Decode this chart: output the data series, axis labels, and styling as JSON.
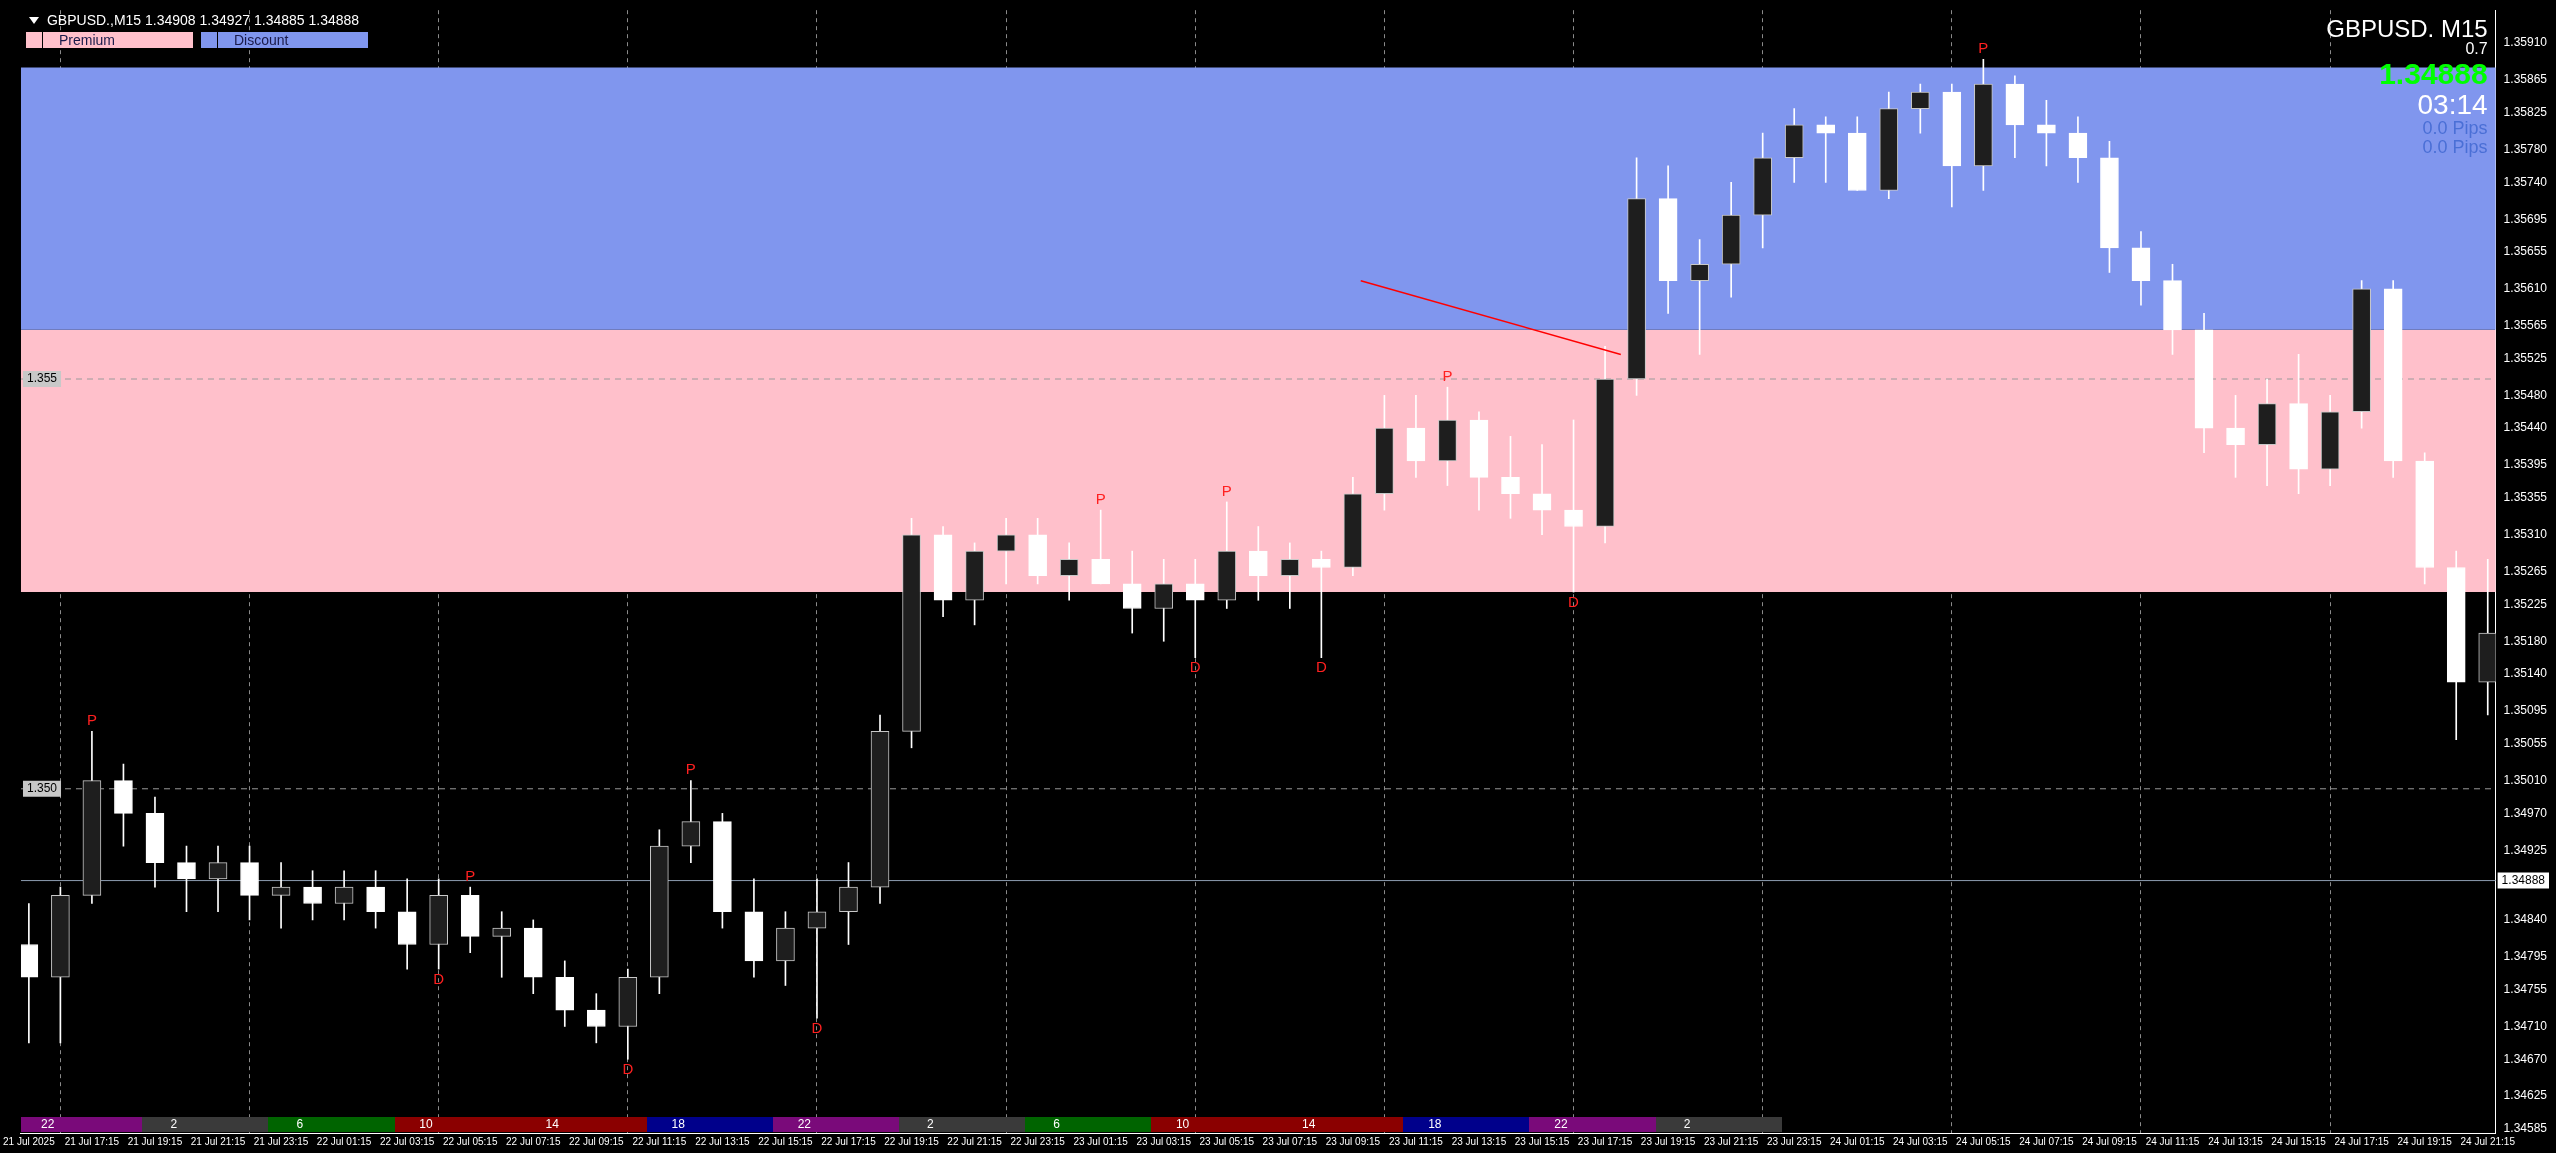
{
  "chart_data": {
    "type": "candlestick",
    "title": "GBPUSD.,M15 1.34908 1.34927 1.34885 1.34888",
    "x": [
      "2025-07-21T15:15",
      "2025-07-21T16:15",
      "2025-07-21T17:15",
      "2025-07-21T18:15",
      "2025-07-21T19:15",
      "2025-07-21T20:15",
      "2025-07-21T21:15",
      "2025-07-21T22:15",
      "2025-07-21T23:15",
      "2025-07-22T00:15",
      "2025-07-22T01:15",
      "2025-07-22T02:15",
      "2025-07-22T03:15",
      "2025-07-22T04:15",
      "2025-07-22T05:15",
      "2025-07-22T06:15",
      "2025-07-22T07:15",
      "2025-07-22T08:15",
      "2025-07-22T09:15",
      "2025-07-22T10:15",
      "2025-07-22T11:15",
      "2025-07-22T12:15",
      "2025-07-22T13:15",
      "2025-07-22T14:15",
      "2025-07-22T15:15",
      "2025-07-22T16:15",
      "2025-07-22T17:15",
      "2025-07-22T18:15",
      "2025-07-22T19:15",
      "2025-07-22T20:15",
      "2025-07-22T21:15",
      "2025-07-22T22:15",
      "2025-07-22T23:15",
      "2025-07-23T00:15",
      "2025-07-23T01:15",
      "2025-07-23T02:15",
      "2025-07-23T03:15",
      "2025-07-23T04:15",
      "2025-07-23T05:15",
      "2025-07-23T06:15",
      "2025-07-23T07:15",
      "2025-07-23T08:15",
      "2025-07-23T09:15",
      "2025-07-23T10:15",
      "2025-07-23T11:15",
      "2025-07-23T12:15",
      "2025-07-23T13:15",
      "2025-07-23T14:15",
      "2025-07-23T15:15",
      "2025-07-23T16:15",
      "2025-07-23T17:15",
      "2025-07-23T18:15",
      "2025-07-23T19:15",
      "2025-07-23T20:15",
      "2025-07-23T21:15",
      "2025-07-23T22:15",
      "2025-07-23T23:15",
      "2025-07-24T00:15",
      "2025-07-24T01:15",
      "2025-07-24T02:15",
      "2025-07-24T03:15",
      "2025-07-24T04:15",
      "2025-07-24T05:15",
      "2025-07-24T06:15",
      "2025-07-24T07:15",
      "2025-07-24T08:15",
      "2025-07-24T09:15",
      "2025-07-24T10:15",
      "2025-07-24T11:15",
      "2025-07-24T12:15",
      "2025-07-24T13:15",
      "2025-07-24T14:15",
      "2025-07-24T15:15",
      "2025-07-24T16:15",
      "2025-07-24T17:15",
      "2025-07-24T18:15",
      "2025-07-24T19:15",
      "2025-07-24T20:15",
      "2025-07-24T21:15"
    ],
    "ohlc": [
      [
        1.3481,
        1.3486,
        1.3469,
        1.3477
      ],
      [
        1.3477,
        1.3488,
        1.3469,
        1.3487
      ],
      [
        1.3487,
        1.3507,
        1.3486,
        1.3501
      ],
      [
        1.3501,
        1.3503,
        1.3493,
        1.3497
      ],
      [
        1.3497,
        1.3499,
        1.3488,
        1.3491
      ],
      [
        1.3491,
        1.3493,
        1.3485,
        1.3489
      ],
      [
        1.3489,
        1.3493,
        1.3485,
        1.3491
      ],
      [
        1.3491,
        1.3493,
        1.3484,
        1.3487
      ],
      [
        1.3487,
        1.3491,
        1.3483,
        1.3488
      ],
      [
        1.3488,
        1.349,
        1.3484,
        1.3486
      ],
      [
        1.3486,
        1.349,
        1.3484,
        1.3488
      ],
      [
        1.3488,
        1.349,
        1.3483,
        1.3485
      ],
      [
        1.3485,
        1.3489,
        1.3478,
        1.3481
      ],
      [
        1.3481,
        1.3489,
        1.3478,
        1.3487
      ],
      [
        1.3487,
        1.3488,
        1.348,
        1.3482
      ],
      [
        1.3482,
        1.3485,
        1.3477,
        1.3483
      ],
      [
        1.3483,
        1.3484,
        1.3475,
        1.3477
      ],
      [
        1.3477,
        1.3479,
        1.3471,
        1.3473
      ],
      [
        1.3473,
        1.3475,
        1.3469,
        1.3471
      ],
      [
        1.3471,
        1.3478,
        1.3467,
        1.3477
      ],
      [
        1.3477,
        1.3495,
        1.3475,
        1.3493
      ],
      [
        1.3493,
        1.3501,
        1.3491,
        1.3496
      ],
      [
        1.3496,
        1.3497,
        1.3483,
        1.3485
      ],
      [
        1.3485,
        1.3489,
        1.3477,
        1.3479
      ],
      [
        1.3479,
        1.3485,
        1.3476,
        1.3483
      ],
      [
        1.3483,
        1.3489,
        1.3472,
        1.3485
      ],
      [
        1.3485,
        1.3491,
        1.3481,
        1.3488
      ],
      [
        1.3488,
        1.3509,
        1.3486,
        1.3507
      ],
      [
        1.3507,
        1.3533,
        1.3505,
        1.3531
      ],
      [
        1.3531,
        1.3532,
        1.3521,
        1.3523
      ],
      [
        1.3523,
        1.353,
        1.352,
        1.3529
      ],
      [
        1.3529,
        1.3533,
        1.3525,
        1.3531
      ],
      [
        1.3531,
        1.3533,
        1.3525,
        1.3526
      ],
      [
        1.3526,
        1.353,
        1.3523,
        1.3528
      ],
      [
        1.3528,
        1.3534,
        1.3525,
        1.3525
      ],
      [
        1.3525,
        1.3529,
        1.3519,
        1.3522
      ],
      [
        1.3522,
        1.3528,
        1.3518,
        1.3525
      ],
      [
        1.3525,
        1.3528,
        1.3516,
        1.3523
      ],
      [
        1.3523,
        1.3535,
        1.3522,
        1.3529
      ],
      [
        1.3529,
        1.3532,
        1.3523,
        1.3526
      ],
      [
        1.3526,
        1.353,
        1.3522,
        1.3528
      ],
      [
        1.3528,
        1.3529,
        1.3516,
        1.3527
      ],
      [
        1.3527,
        1.3538,
        1.3526,
        1.3536
      ],
      [
        1.3536,
        1.3548,
        1.3534,
        1.3544
      ],
      [
        1.3544,
        1.3548,
        1.3538,
        1.354
      ],
      [
        1.354,
        1.3549,
        1.3537,
        1.3545
      ],
      [
        1.3545,
        1.3546,
        1.3534,
        1.3538
      ],
      [
        1.3538,
        1.3543,
        1.3533,
        1.3536
      ],
      [
        1.3536,
        1.3542,
        1.3531,
        1.3534
      ],
      [
        1.3534,
        1.3545,
        1.3524,
        1.3532
      ],
      [
        1.3532,
        1.3554,
        1.353,
        1.355
      ],
      [
        1.355,
        1.3577,
        1.3548,
        1.3572
      ],
      [
        1.3572,
        1.3576,
        1.3558,
        1.3562
      ],
      [
        1.3562,
        1.3567,
        1.3553,
        1.3564
      ],
      [
        1.3564,
        1.3574,
        1.356,
        1.357
      ],
      [
        1.357,
        1.358,
        1.3566,
        1.3577
      ],
      [
        1.3577,
        1.3583,
        1.3574,
        1.3581
      ],
      [
        1.3581,
        1.3582,
        1.3574,
        1.358
      ],
      [
        1.358,
        1.3582,
        1.3573,
        1.3573
      ],
      [
        1.3573,
        1.3585,
        1.3572,
        1.3583
      ],
      [
        1.3583,
        1.3586,
        1.358,
        1.3585
      ],
      [
        1.3585,
        1.3586,
        1.3571,
        1.3576
      ],
      [
        1.3576,
        1.3589,
        1.3573,
        1.3586
      ],
      [
        1.3586,
        1.3587,
        1.3577,
        1.3581
      ],
      [
        1.3581,
        1.3584,
        1.3576,
        1.358
      ],
      [
        1.358,
        1.3582,
        1.3574,
        1.3577
      ],
      [
        1.3577,
        1.3579,
        1.3563,
        1.3566
      ],
      [
        1.3566,
        1.3568,
        1.3559,
        1.3562
      ],
      [
        1.3562,
        1.3564,
        1.3553,
        1.3556
      ],
      [
        1.3556,
        1.3558,
        1.3541,
        1.3544
      ],
      [
        1.3544,
        1.3548,
        1.3538,
        1.3542
      ],
      [
        1.3542,
        1.355,
        1.3537,
        1.3547
      ],
      [
        1.3547,
        1.3553,
        1.3536,
        1.3539
      ],
      [
        1.3539,
        1.3548,
        1.3537,
        1.3546
      ],
      [
        1.3546,
        1.3562,
        1.3544,
        1.3561
      ],
      [
        1.3561,
        1.3562,
        1.3538,
        1.354
      ],
      [
        1.354,
        1.3541,
        1.3525,
        1.3527
      ],
      [
        1.3527,
        1.3529,
        1.3506,
        1.3513
      ],
      [
        1.3513,
        1.3528,
        1.3509,
        1.3519
      ]
    ],
    "series": [
      {
        "type": "line",
        "color": "#ff0000",
        "x": [
          "2025-07-23T09:30",
          "2025-07-23T17:45"
        ],
        "values": [
          1.3562,
          1.3553
        ]
      }
    ],
    "xlim": [
      "2025-07-21T15:00",
      "2025-07-24T21:30"
    ],
    "xticks": [
      {
        "value": "2025-07-21T15:15",
        "label": "21 Jul 2025"
      },
      {
        "value": "2025-07-21T17:15",
        "label": "21 Jul 17:15"
      },
      {
        "value": "2025-07-21T19:15",
        "label": "21 Jul 19:15"
      },
      {
        "value": "2025-07-21T21:15",
        "label": "21 Jul 21:15"
      },
      {
        "value": "2025-07-21T23:15",
        "label": "21 Jul 23:15"
      },
      {
        "value": "2025-07-22T01:15",
        "label": "22 Jul 01:15"
      },
      {
        "value": "2025-07-22T03:15",
        "label": "22 Jul 03:15"
      },
      {
        "value": "2025-07-22T05:15",
        "label": "22 Jul 05:15"
      },
      {
        "value": "2025-07-22T07:15",
        "label": "22 Jul 07:15"
      },
      {
        "value": "2025-07-22T09:15",
        "label": "22 Jul 09:15"
      },
      {
        "value": "2025-07-22T11:15",
        "label": "22 Jul 11:15"
      },
      {
        "value": "2025-07-22T13:15",
        "label": "22 Jul 13:15"
      },
      {
        "value": "2025-07-22T15:15",
        "label": "22 Jul 15:15"
      },
      {
        "value": "2025-07-22T17:15",
        "label": "22 Jul 17:15"
      },
      {
        "value": "2025-07-22T19:15",
        "label": "22 Jul 19:15"
      },
      {
        "value": "2025-07-22T21:15",
        "label": "22 Jul 21:15"
      },
      {
        "value": "2025-07-22T23:15",
        "label": "22 Jul 23:15"
      },
      {
        "value": "2025-07-23T01:15",
        "label": "23 Jul 01:15"
      },
      {
        "value": "2025-07-23T03:15",
        "label": "23 Jul 03:15"
      },
      {
        "value": "2025-07-23T05:15",
        "label": "23 Jul 05:15"
      },
      {
        "value": "2025-07-23T07:15",
        "label": "23 Jul 07:15"
      },
      {
        "value": "2025-07-23T09:15",
        "label": "23 Jul 09:15"
      },
      {
        "value": "2025-07-23T11:15",
        "label": "23 Jul 11:15"
      },
      {
        "value": "2025-07-23T13:15",
        "label": "23 Jul 13:15"
      },
      {
        "value": "2025-07-23T15:15",
        "label": "23 Jul 15:15"
      },
      {
        "value": "2025-07-23T17:15",
        "label": "23 Jul 17:15"
      },
      {
        "value": "2025-07-23T19:15",
        "label": "23 Jul 19:15"
      },
      {
        "value": "2025-07-23T21:15",
        "label": "23 Jul 21:15"
      },
      {
        "value": "2025-07-23T23:15",
        "label": "23 Jul 23:15"
      },
      {
        "value": "2025-07-24T01:15",
        "label": "24 Jul 01:15"
      },
      {
        "value": "2025-07-24T03:15",
        "label": "24 Jul 03:15"
      },
      {
        "value": "2025-07-24T05:15",
        "label": "24 Jul 05:15"
      },
      {
        "value": "2025-07-24T07:15",
        "label": "24 Jul 07:15"
      },
      {
        "value": "2025-07-24T09:15",
        "label": "24 Jul 09:15"
      },
      {
        "value": "2025-07-24T11:15",
        "label": "24 Jul 11:15"
      },
      {
        "value": "2025-07-24T13:15",
        "label": "24 Jul 13:15"
      },
      {
        "value": "2025-07-24T15:15",
        "label": "24 Jul 15:15"
      },
      {
        "value": "2025-07-24T17:15",
        "label": "24 Jul 17:15"
      },
      {
        "value": "2025-07-24T19:15",
        "label": "24 Jul 19:15"
      },
      {
        "value": "2025-07-24T21:15",
        "label": "24 Jul 21:15"
      }
    ],
    "ylim": [
      1.3458,
      1.3595
    ],
    "yticks": [
      {
        "value": 1.3591,
        "label": "1.35910"
      },
      1.35865,
      1.35825,
      {
        "value": 1.3578,
        "label": "1.35780"
      },
      {
        "value": 1.3574,
        "label": "1.35740"
      },
      1.35695,
      1.35655,
      {
        "value": 1.3561,
        "label": "1.35610"
      },
      1.35565,
      1.35525,
      {
        "value": 1.3548,
        "label": "1.35480"
      },
      {
        "value": 1.3544,
        "label": "1.35440"
      },
      1.35395,
      1.35355,
      {
        "value": 1.3531,
        "label": "1.35310"
      },
      1.35265,
      1.35225,
      {
        "value": 1.3518,
        "label": "1.35180"
      },
      {
        "value": 1.3514,
        "label": "1.35140"
      },
      1.35095,
      1.35055,
      {
        "value": 1.3501,
        "label": "1.35010"
      },
      {
        "value": 1.3497,
        "label": "1.34970"
      },
      1.34925,
      {
        "value": 1.3484,
        "label": "1.34840"
      },
      1.34795,
      1.34755,
      {
        "value": 1.3471,
        "label": "1.34710"
      },
      {
        "value": 1.3467,
        "label": "1.34670"
      },
      1.34625,
      1.34585
    ],
    "grid": "x",
    "legend": "top left",
    "bands": [
      {
        "axis": "y",
        "from": 1.3524,
        "to": 1.3556,
        "label": "Premium",
        "color": "#ffc0cb"
      },
      {
        "axis": "y",
        "from": 1.3556,
        "to": 1.3588,
        "label": "Discount",
        "color": "#8096ee"
      }
    ],
    "ref_lines": [
      {
        "axis": "y",
        "value": 1.355,
        "label": "1.355",
        "line_style": "dashed",
        "color": "#9a9a9a"
      },
      {
        "axis": "y",
        "value": 1.35,
        "label": "1.350",
        "line_style": "dashed",
        "color": "#9a9a9a"
      },
      {
        "axis": "y",
        "value": 1.34888,
        "label": "1.34888",
        "line_style": "solid",
        "color": "#8c9cb0"
      }
    ],
    "annotations": [
      "GBPUSD. M15",
      "0.7",
      "1.34888",
      "03:14",
      "0.0 Pips",
      "0.0 Pips",
      "22",
      "2",
      "6",
      "10",
      "14",
      "18",
      "22",
      "2",
      "6",
      "10",
      "14",
      "18",
      "22",
      "2",
      {
        "text": "P",
        "x": "2025-07-21T17:15",
        "y": 1.3507
      },
      {
        "text": "D",
        "x": "2025-07-22T04:15",
        "y": 1.3478
      },
      {
        "text": "P",
        "x": "2025-07-22T05:15",
        "y": 1.3488
      },
      {
        "text": "D",
        "x": "2025-07-22T10:15",
        "y": 1.3467
      },
      {
        "text": "P",
        "x": "2025-07-22T12:15",
        "y": 1.3501
      },
      {
        "text": "D",
        "x": "2025-07-22T16:15",
        "y": 1.3472
      },
      {
        "text": "P",
        "x": "2025-07-23T01:15",
        "y": 1.3534
      },
      {
        "text": "D",
        "x": "2025-07-23T04:15",
        "y": 1.3516
      },
      {
        "text": "P",
        "x": "2025-07-23T05:15",
        "y": 1.3535
      },
      {
        "text": "D",
        "x": "2025-07-23T08:15",
        "y": 1.3516
      },
      {
        "text": "P",
        "x": "2025-07-23T12:15",
        "y": 1.3549
      },
      {
        "text": "D",
        "x": "2025-07-23T16:15",
        "y": 1.3524
      },
      {
        "text": "P",
        "x": "2025-07-24T05:15",
        "y": 1.3589
      }
    ]
  }
}
